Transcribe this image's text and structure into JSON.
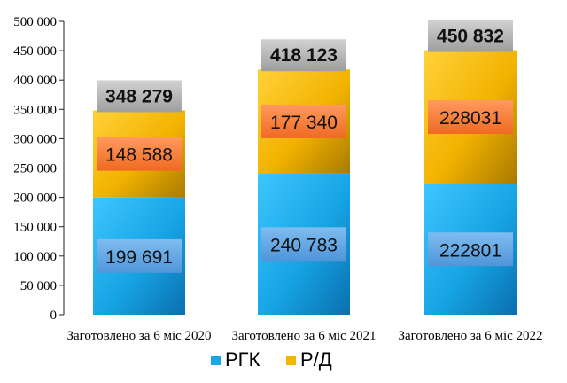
{
  "chart_data": {
    "type": "bar",
    "stacked": true,
    "categories": [
      "Заготовлено за 6 міс 2020",
      "Заготовлено за 6 міс 2021",
      "Заготовлено за 6 міс 2022"
    ],
    "series": [
      {
        "name": "РГК",
        "values": [
          199691,
          240783,
          222801
        ],
        "labels": [
          "199 691",
          "240 783",
          "222801"
        ],
        "color": "#1aa7e6"
      },
      {
        "name": "Р/Д",
        "values": [
          148588,
          177340,
          228031
        ],
        "labels": [
          "148 588",
          "177 340",
          "228031"
        ],
        "color": "#f2b600"
      }
    ],
    "totals": [
      348279,
      418123,
      450832
    ],
    "total_labels": [
      "348 279",
      "418 123",
      "450 832"
    ],
    "ylim": [
      0,
      500000
    ],
    "yticks": [
      0,
      50000,
      100000,
      150000,
      200000,
      250000,
      300000,
      350000,
      400000,
      450000,
      500000
    ],
    "ytick_labels": [
      "0",
      "50 000",
      "100 000",
      "150 000",
      "200 000",
      "250 000",
      "300 000",
      "350 000",
      "400 000",
      "450 000",
      "500 000"
    ],
    "legend_position": "bottom",
    "grid": false
  }
}
